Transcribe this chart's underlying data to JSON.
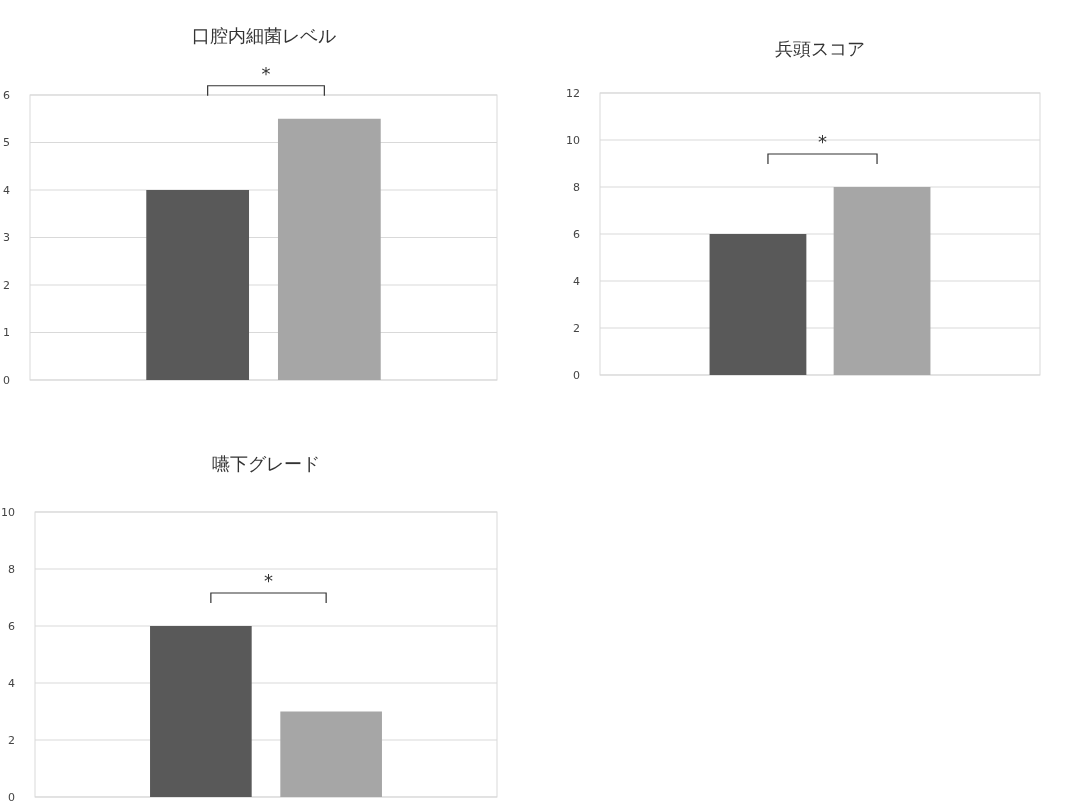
{
  "chart_data": [
    {
      "type": "bar",
      "title": "口腔内細菌レベル",
      "categories": [
        null,
        null
      ],
      "values": [
        4,
        5.5
      ],
      "colors": [
        "#595959",
        "#a6a6a6"
      ],
      "ylim": [
        0,
        6
      ],
      "yticks": [
        0,
        1,
        2,
        3,
        4,
        5,
        6
      ],
      "grid": "y",
      "annotations": [
        "*"
      ]
    },
    {
      "type": "bar",
      "title": "兵頭スコア",
      "categories": [
        null,
        null
      ],
      "values": [
        6,
        8
      ],
      "colors": [
        "#595959",
        "#a6a6a6"
      ],
      "ylim": [
        0,
        12
      ],
      "yticks": [
        0,
        2,
        4,
        6,
        8,
        10,
        12
      ],
      "grid": "y",
      "annotations": [
        "*"
      ]
    },
    {
      "type": "bar",
      "title": "嚥下グレード",
      "categories": [
        null,
        null
      ],
      "values": [
        6,
        3
      ],
      "colors": [
        "#595959",
        "#a6a6a6"
      ],
      "ylim": [
        0,
        10
      ],
      "yticks": [
        0,
        2,
        4,
        6,
        8,
        10
      ],
      "grid": "y",
      "annotations": [
        "*"
      ]
    }
  ]
}
